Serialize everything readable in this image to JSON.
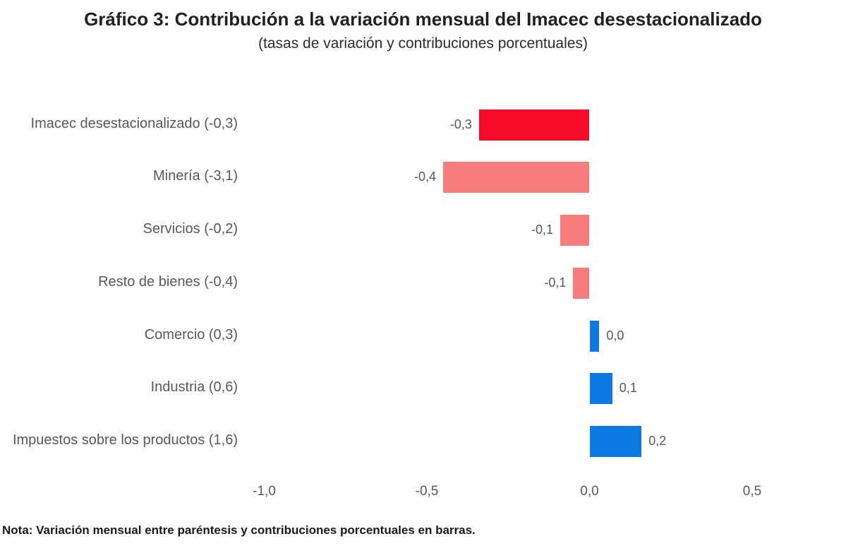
{
  "chart": {
    "title": "Gráfico 3: Contribución a la variación mensual del Imacec desestacionalizado",
    "subtitle": "(tasas de variación y contribuciones porcentuales)",
    "note": "Nota: Variación mensual entre paréntesis y contribuciones porcentuales en barras."
  },
  "chart_data": {
    "type": "bar",
    "orientation": "horizontal",
    "title": "Gráfico 3: Contribución a la variación mensual del Imacec desestacionalizado",
    "subtitle": "(tasas de variación y contribuciones porcentuales)",
    "categories": [
      "Imacec desestacionalizado (-0,3)",
      "Minería (-3,1)",
      "Servicios (-0,2)",
      "Resto de bienes (-0,4)",
      "Comercio (0,3)",
      "Industria (0,6)",
      "Impuestos sobre los productos (1,6)"
    ],
    "monthly_variation_in_parentheses": [
      -0.3,
      -3.1,
      -0.2,
      -0.4,
      0.3,
      0.6,
      1.6
    ],
    "values": [
      -0.34,
      -0.45,
      -0.09,
      -0.05,
      0.03,
      0.07,
      0.16
    ],
    "value_labels": [
      "-0,3",
      "-0,4",
      "-0,1",
      "-0,1",
      "0,0",
      "0,1",
      "0,2"
    ],
    "bar_colors": [
      "#f60c26",
      "#f77c7c",
      "#f77c7c",
      "#f77c7c",
      "#0d79e3",
      "#0d79e3",
      "#0d79e3"
    ],
    "x_ticks": [
      {
        "value": -1.0,
        "label": "-1,0"
      },
      {
        "value": -0.5,
        "label": "-0,5"
      },
      {
        "value": 0.0,
        "label": "0,0"
      },
      {
        "value": 0.5,
        "label": "0,5"
      }
    ],
    "xlim": [
      -1.07,
      0.66
    ],
    "grid": false,
    "legend": false,
    "note": "Nota: Variación mensual entre paréntesis y contribuciones porcentuales en barras.",
    "accent_colors": {
      "highlight_negative": "#f60c26",
      "negative": "#f77c7c",
      "positive": "#0d79e3",
      "text_gray": "#595959",
      "text_dark": "#212121"
    }
  }
}
